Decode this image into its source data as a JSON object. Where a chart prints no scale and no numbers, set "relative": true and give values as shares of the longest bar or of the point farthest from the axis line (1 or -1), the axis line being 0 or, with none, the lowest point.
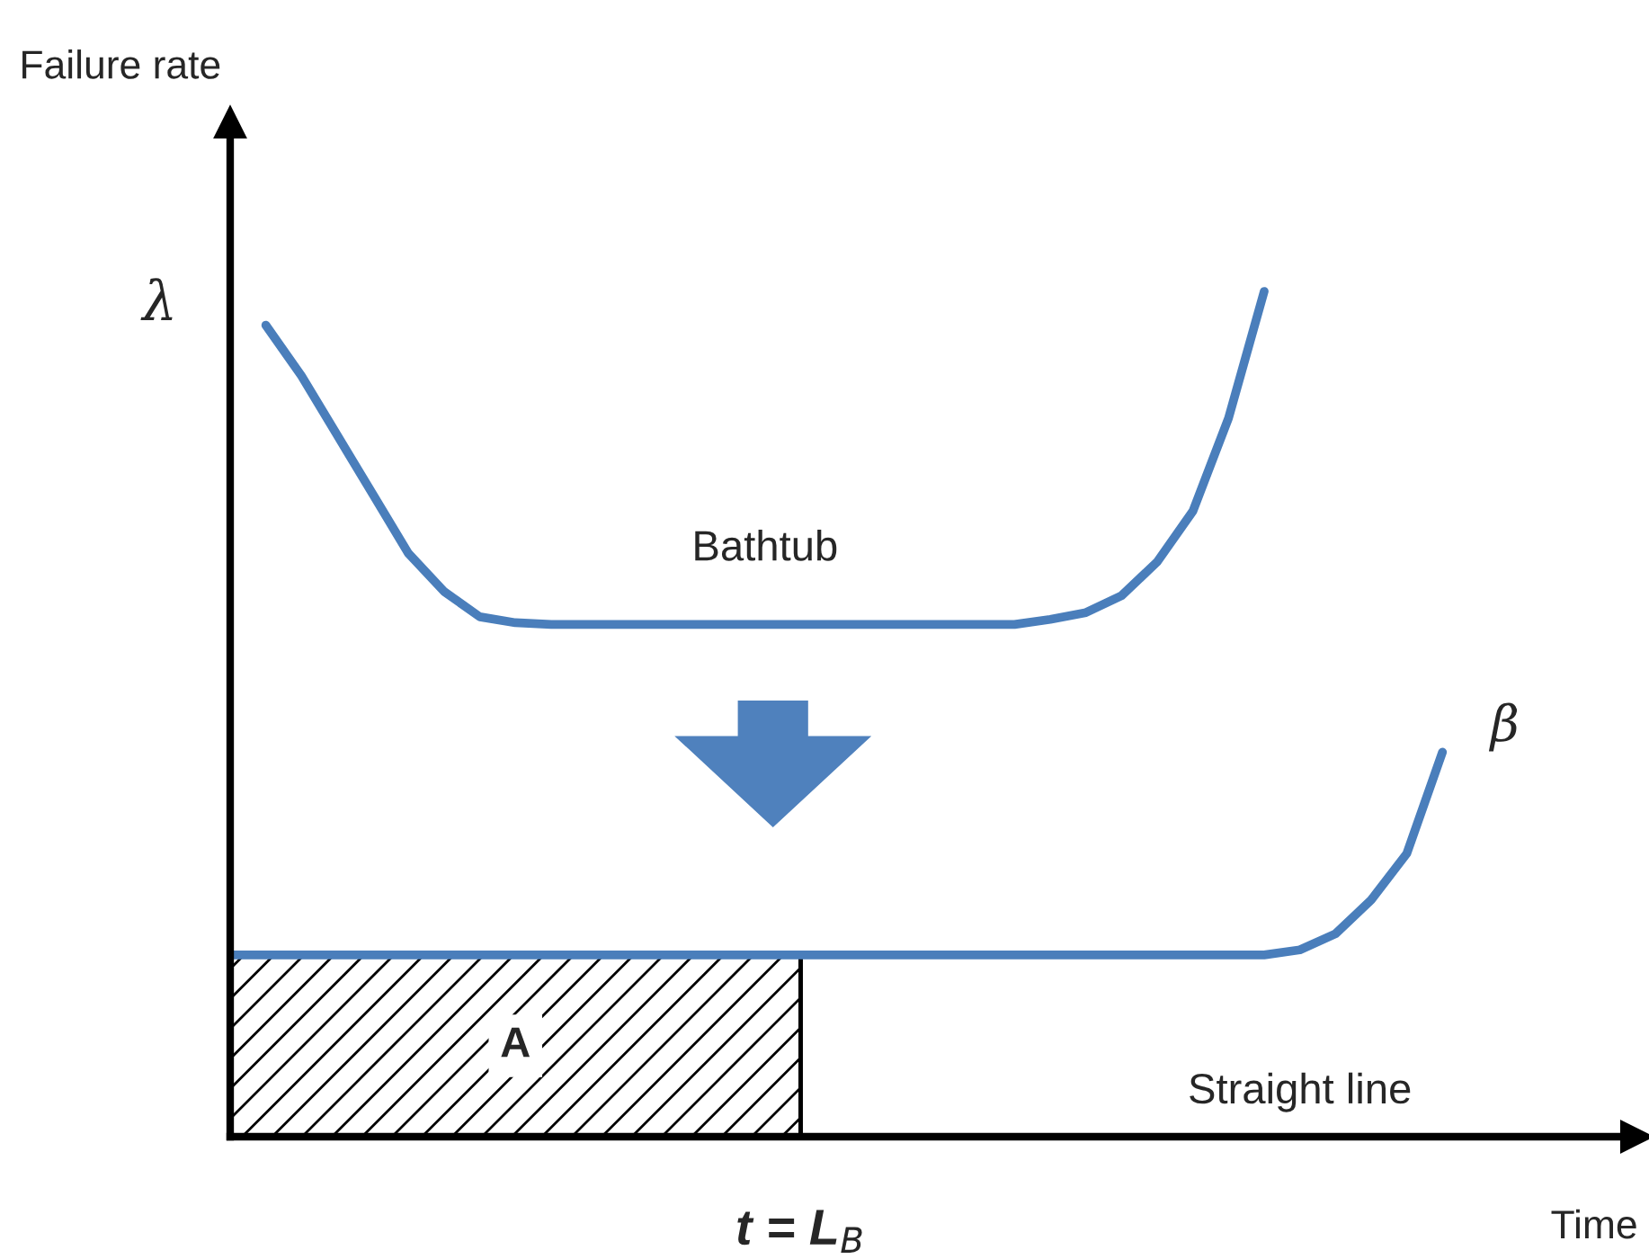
{
  "chart_data": {
    "type": "line",
    "relative": true,
    "xlabel": "Time",
    "categories": [
      null,
      null,
      null,
      null,
      null,
      null,
      null,
      null,
      null,
      null,
      null,
      null,
      null,
      null,
      null,
      null,
      null,
      null,
      null,
      null,
      null,
      null,
      null,
      null,
      null,
      null,
      null,
      null,
      null,
      null,
      null,
      null,
      null,
      null,
      null
    ],
    "marker": "none",
    "line_style": "solid",
    "series": [
      {
        "name": "Bathtub",
        "color": "#4a7ebb",
        "values": [
          null,
          0.96,
          0.9,
          0.83,
          0.76,
          0.69,
          0.645,
          0.615,
          0.608,
          0.606,
          0.606,
          0.606,
          0.606,
          0.606,
          0.606,
          0.606,
          0.606,
          0.606,
          0.606,
          0.606,
          0.606,
          0.606,
          0.606,
          0.612,
          0.62,
          0.64,
          0.68,
          0.74,
          0.85,
          1.0,
          null,
          null,
          null,
          null,
          null
        ]
      },
      {
        "name": "Straight line",
        "color": "#4a7ebb",
        "values": [
          0.215,
          0.215,
          0.215,
          0.215,
          0.215,
          0.215,
          0.215,
          0.215,
          0.215,
          0.215,
          0.215,
          0.215,
          0.215,
          0.215,
          0.215,
          0.215,
          0.215,
          0.215,
          0.215,
          0.215,
          0.215,
          0.215,
          0.215,
          0.215,
          0.215,
          0.215,
          0.215,
          0.215,
          0.215,
          0.215,
          0.221,
          0.24,
          0.28,
          0.335,
          0.455
        ]
      },
      {
        "type": "area",
        "name": "A",
        "color": "#000000",
        "values": [
          0.215,
          0.215,
          0.215,
          0.215,
          0.215,
          0.215,
          0.215,
          0.215,
          0.215,
          0.215,
          0.215,
          0.215,
          0.215,
          0.215,
          0.215,
          0.215,
          0.215,
          null,
          null,
          null,
          null,
          null,
          null,
          null,
          null,
          null,
          null,
          null,
          null,
          null,
          null,
          null,
          null,
          null,
          null
        ]
      }
    ],
    "annotations": [
      "λ",
      "β",
      "t = L$_{B}$",
      "Failure rate"
    ]
  }
}
